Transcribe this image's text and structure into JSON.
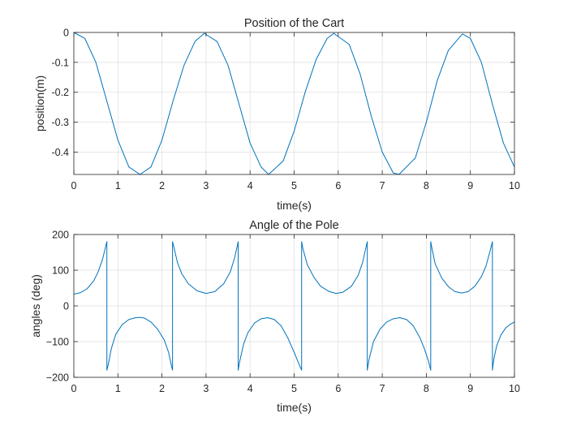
{
  "chart_data": [
    {
      "type": "line",
      "title": "Position of the Cart",
      "xlabel": "time(s)",
      "ylabel": "position(m)",
      "xlim": [
        0,
        10
      ],
      "ylim": [
        -0.475,
        0
      ],
      "xticks": [
        0,
        1,
        2,
        3,
        4,
        5,
        6,
        7,
        8,
        9,
        10
      ],
      "yticks": [
        0,
        -0.1,
        -0.2,
        -0.3,
        -0.4
      ],
      "ytick_labels": [
        "0",
        "-0.1",
        "-0.2",
        "-0.3",
        "-0.4"
      ],
      "grid": true,
      "line_color": "#0072bd",
      "series": [
        {
          "x": [
            0,
            0.25,
            0.5,
            0.75,
            1.0,
            1.25,
            1.5,
            1.75,
            2.0,
            2.25,
            2.5,
            2.75,
            2.96,
            3.25,
            3.5,
            3.75,
            4.0,
            4.25,
            4.42,
            4.75,
            5.0,
            5.25,
            5.5,
            5.75,
            5.9,
            6.25,
            6.5,
            6.75,
            7.0,
            7.25,
            7.38,
            7.75,
            8.0,
            8.25,
            8.5,
            8.82,
            9.0,
            9.25,
            9.5,
            9.75,
            10.0
          ],
          "y": [
            0,
            -0.02,
            -0.1,
            -0.23,
            -0.36,
            -0.45,
            -0.475,
            -0.45,
            -0.36,
            -0.23,
            -0.11,
            -0.03,
            -0.003,
            -0.03,
            -0.11,
            -0.24,
            -0.37,
            -0.45,
            -0.475,
            -0.43,
            -0.33,
            -0.2,
            -0.09,
            -0.02,
            -0.003,
            -0.04,
            -0.14,
            -0.28,
            -0.4,
            -0.47,
            -0.475,
            -0.42,
            -0.3,
            -0.16,
            -0.06,
            -0.005,
            -0.02,
            -0.1,
            -0.24,
            -0.37,
            -0.45
          ]
        }
      ]
    },
    {
      "type": "line",
      "title": "Angle of the Pole",
      "xlabel": "time(s)",
      "ylabel": "angles (deg)",
      "xlim": [
        0,
        10
      ],
      "ylim": [
        -200,
        200
      ],
      "xticks": [
        0,
        1,
        2,
        3,
        4,
        5,
        6,
        7,
        8,
        9,
        10
      ],
      "yticks": [
        200,
        100,
        0,
        -100,
        -200
      ],
      "ytick_labels": [
        "200",
        "100",
        "0",
        "−100",
        "−200"
      ],
      "grid": true,
      "line_color": "#0072bd",
      "series": [
        {
          "x": [
            0,
            0.15,
            0.3,
            0.45,
            0.55,
            0.65,
            0.72,
            0.75,
            0.75,
            0.78,
            0.85,
            0.95,
            1.1,
            1.25,
            1.4,
            1.5,
            1.6,
            1.75,
            1.9,
            2.05,
            2.15,
            2.21,
            2.24,
            2.24,
            2.28,
            2.35,
            2.45,
            2.6,
            2.8,
            3.0,
            3.2,
            3.4,
            3.55,
            3.65,
            3.73,
            3.73,
            3.76,
            3.85,
            3.95,
            4.1,
            4.25,
            4.4,
            4.55,
            4.7,
            4.85,
            5.0,
            5.1,
            5.17,
            5.17,
            5.2,
            5.3,
            5.45,
            5.6,
            5.8,
            5.95,
            6.1,
            6.3,
            6.45,
            6.55,
            6.66,
            6.66,
            6.7,
            6.8,
            6.95,
            7.1,
            7.25,
            7.4,
            7.55,
            7.7,
            7.85,
            7.95,
            8.05,
            8.1,
            8.1,
            8.13,
            8.2,
            8.35,
            8.5,
            8.65,
            8.8,
            8.95,
            9.1,
            9.25,
            9.35,
            9.45,
            9.5,
            9.5,
            9.53,
            9.6,
            9.7,
            9.8,
            9.9,
            10.0
          ],
          "y": [
            33,
            37,
            48,
            70,
            95,
            130,
            165,
            180,
            -180,
            -165,
            -120,
            -80,
            -52,
            -38,
            -33,
            -32,
            -34,
            -45,
            -65,
            -95,
            -130,
            -165,
            -180,
            180,
            160,
            122,
            90,
            62,
            42,
            35,
            40,
            62,
            95,
            135,
            180,
            -180,
            -158,
            -108,
            -75,
            -48,
            -36,
            -33,
            -38,
            -55,
            -88,
            -130,
            -160,
            -180,
            180,
            160,
            115,
            80,
            55,
            40,
            35,
            38,
            55,
            85,
            120,
            180,
            -180,
            -150,
            -100,
            -65,
            -45,
            -36,
            -33,
            -38,
            -55,
            -88,
            -118,
            -155,
            -180,
            180,
            160,
            118,
            78,
            54,
            40,
            36,
            40,
            55,
            82,
            110,
            155,
            180,
            -180,
            -150,
            -110,
            -80,
            -62,
            -52,
            -45
          ]
        }
      ]
    }
  ]
}
